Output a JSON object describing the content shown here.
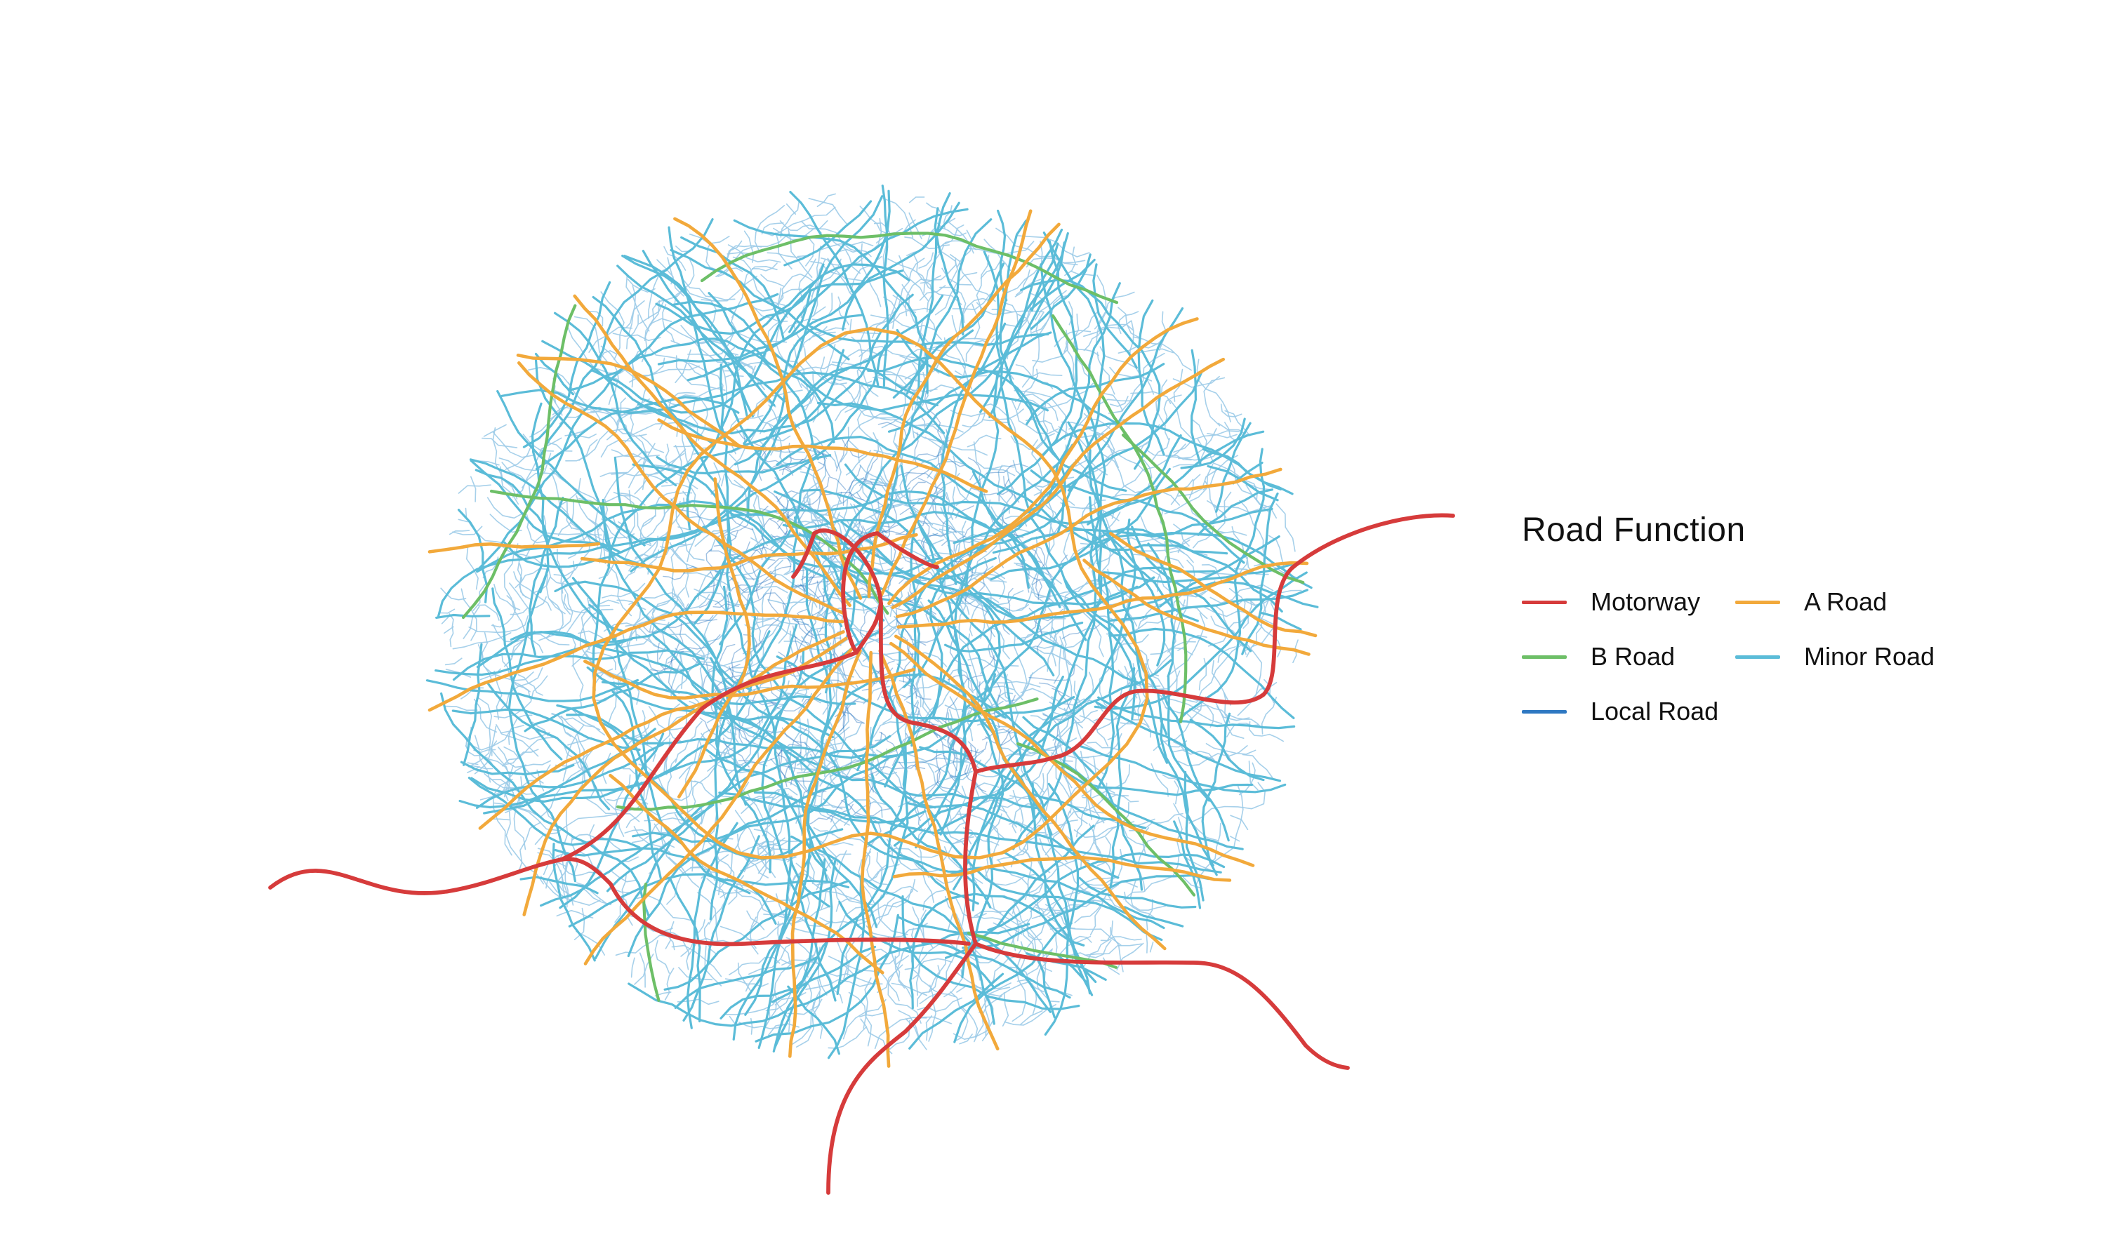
{
  "legend": {
    "title": "Road Function",
    "items": [
      {
        "key": "motorway",
        "label": "Motorway",
        "color": "#d63b3b"
      },
      {
        "key": "a_road",
        "label": "A Road",
        "color": "#f2a93b"
      },
      {
        "key": "b_road",
        "label": "B Road",
        "color": "#6dbf67"
      },
      {
        "key": "minor_road",
        "label": "Minor Road",
        "color": "#5bbcd8"
      },
      {
        "key": "local_road",
        "label": "Local Road",
        "color": "#2e78c2"
      }
    ]
  },
  "colors": {
    "background": "#ffffff",
    "local_road_light": "#9ccbe8"
  }
}
